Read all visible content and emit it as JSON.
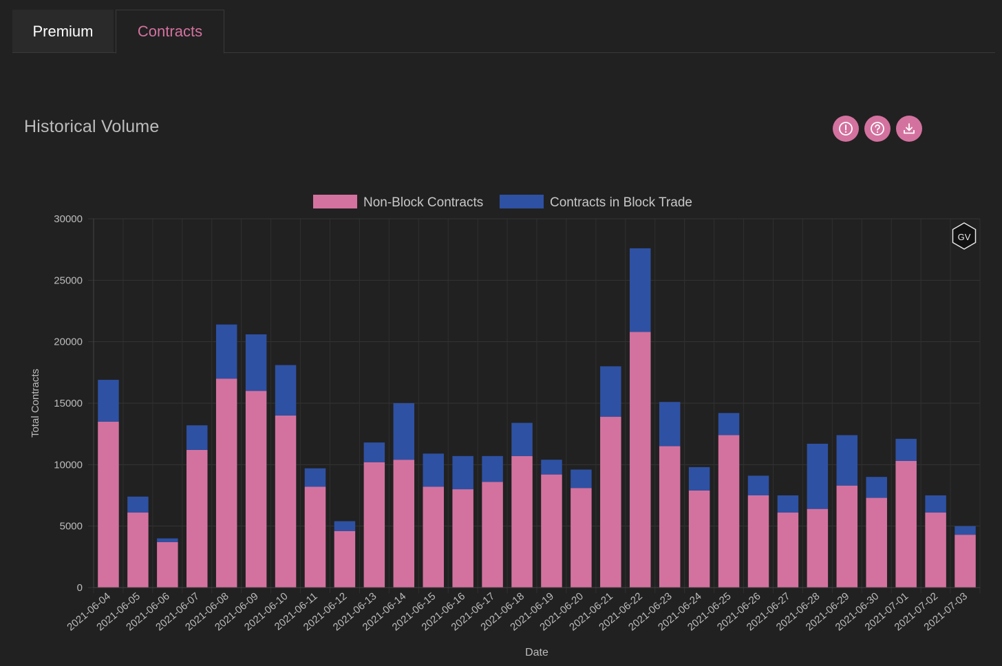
{
  "tabs": [
    {
      "label": "Premium",
      "active": false
    },
    {
      "label": "Contracts",
      "active": true
    }
  ],
  "page_title": "Historical Volume",
  "toolbar": {
    "icons": [
      "alert-icon",
      "help-icon",
      "download-icon"
    ]
  },
  "watermark": "GV",
  "colors": {
    "non_block": "#d4729f",
    "block": "#2e51a3",
    "background": "#212121",
    "accent": "#d4729f"
  },
  "chart_data": {
    "type": "bar",
    "stacked": true,
    "title": "",
    "xlabel": "Date",
    "ylabel": "Total Contracts",
    "ylim": [
      0,
      30000
    ],
    "yticks": [
      "0",
      "5000",
      "10000",
      "15000",
      "20000",
      "25000",
      "30000"
    ],
    "grid": true,
    "legend_position": "top-center",
    "categories": [
      "2021-06-04",
      "2021-06-05",
      "2021-06-06",
      "2021-06-07",
      "2021-06-08",
      "2021-06-09",
      "2021-06-10",
      "2021-06-11",
      "2021-06-12",
      "2021-06-13",
      "2021-06-14",
      "2021-06-15",
      "2021-06-16",
      "2021-06-17",
      "2021-06-18",
      "2021-06-19",
      "2021-06-20",
      "2021-06-21",
      "2021-06-22",
      "2021-06-23",
      "2021-06-24",
      "2021-06-25",
      "2021-06-26",
      "2021-06-27",
      "2021-06-28",
      "2021-06-29",
      "2021-06-30",
      "2021-07-01",
      "2021-07-02",
      "2021-07-03"
    ],
    "series": [
      {
        "name": "Non-Block Contracts",
        "values": [
          13500,
          6100,
          3700,
          11200,
          17000,
          16000,
          14000,
          8200,
          4600,
          10200,
          10400,
          8200,
          8000,
          8600,
          10700,
          9200,
          8100,
          13900,
          20800,
          11500,
          7900,
          12400,
          7500,
          6100,
          6400,
          8300,
          7300,
          10300,
          6100,
          4300
        ]
      },
      {
        "name": "Contracts in Block Trade",
        "values": [
          3400,
          1300,
          300,
          2000,
          4400,
          4600,
          4100,
          1500,
          800,
          1600,
          4600,
          2700,
          2700,
          2100,
          2700,
          1200,
          1500,
          4100,
          6800,
          3600,
          1900,
          1800,
          1600,
          1400,
          5300,
          4100,
          1700,
          1800,
          1400,
          700
        ]
      }
    ]
  }
}
